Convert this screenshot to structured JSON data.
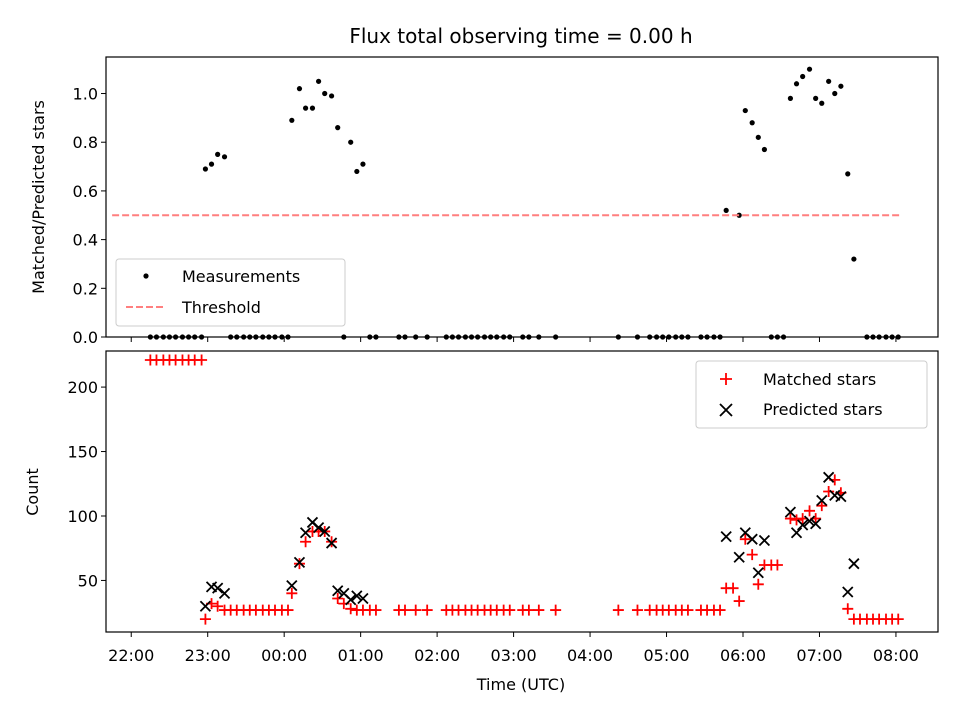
{
  "chart_data": {
    "title": "Flux total observing time = 0.00 h",
    "xlabel": "Time (UTC)",
    "x_unit": "hours since 22:00 UTC",
    "xlim": [
      -0.33,
      10.55
    ],
    "x_ticks": [
      {
        "value": 0,
        "label": "22:00"
      },
      {
        "value": 1,
        "label": "23:00"
      },
      {
        "value": 2,
        "label": "00:00"
      },
      {
        "value": 3,
        "label": "01:00"
      },
      {
        "value": 4,
        "label": "02:00"
      },
      {
        "value": 5,
        "label": "03:00"
      },
      {
        "value": 6,
        "label": "04:00"
      },
      {
        "value": 7,
        "label": "05:00"
      },
      {
        "value": 8,
        "label": "06:00"
      },
      {
        "value": 9,
        "label": "07:00"
      },
      {
        "value": 10,
        "label": "08:00"
      }
    ],
    "panels": [
      {
        "type": "scatter",
        "ylabel": "Matched/Predicted stars",
        "ylim": [
          0,
          1.15
        ],
        "y_ticks": [
          0.0,
          0.2,
          0.4,
          0.6,
          0.8,
          1.0
        ],
        "y_tick_labels": [
          "0.0",
          "0.2",
          "0.4",
          "0.6",
          "0.8",
          "1.0"
        ],
        "legend": {
          "position": "lower-left",
          "entries": [
            {
              "label": "Measurements",
              "marker": "dot",
              "color": "#000000"
            },
            {
              "label": "Threshold",
              "marker": "dashed-line",
              "color": "#ff7f7f"
            }
          ]
        },
        "series": [
          {
            "name": "Measurements",
            "marker": "dot",
            "color": "#000000",
            "points": [
              [
                0.25,
                0
              ],
              [
                0.33,
                0
              ],
              [
                0.42,
                0
              ],
              [
                0.5,
                0
              ],
              [
                0.58,
                0
              ],
              [
                0.67,
                0
              ],
              [
                0.75,
                0
              ],
              [
                0.83,
                0
              ],
              [
                0.92,
                0
              ],
              [
                0.97,
                0.69
              ],
              [
                1.05,
                0.71
              ],
              [
                1.13,
                0.75
              ],
              [
                1.22,
                0.74
              ],
              [
                1.3,
                0
              ],
              [
                1.38,
                0
              ],
              [
                1.47,
                0
              ],
              [
                1.55,
                0
              ],
              [
                1.63,
                0
              ],
              [
                1.72,
                0
              ],
              [
                1.8,
                0
              ],
              [
                1.88,
                0
              ],
              [
                1.97,
                0
              ],
              [
                2.05,
                0
              ],
              [
                2.1,
                0.89
              ],
              [
                2.2,
                1.02
              ],
              [
                2.28,
                0.94
              ],
              [
                2.37,
                0.94
              ],
              [
                2.45,
                1.05
              ],
              [
                2.53,
                1.0
              ],
              [
                2.62,
                0.99
              ],
              [
                2.7,
                0.86
              ],
              [
                2.78,
                0
              ],
              [
                2.87,
                0.8
              ],
              [
                2.95,
                0.68
              ],
              [
                3.03,
                0.71
              ],
              [
                3.12,
                0
              ],
              [
                3.2,
                0
              ],
              [
                3.5,
                0
              ],
              [
                3.58,
                0
              ],
              [
                3.72,
                0
              ],
              [
                3.87,
                0
              ],
              [
                4.12,
                0
              ],
              [
                4.2,
                0
              ],
              [
                4.28,
                0
              ],
              [
                4.37,
                0
              ],
              [
                4.45,
                0
              ],
              [
                4.53,
                0
              ],
              [
                4.62,
                0
              ],
              [
                4.7,
                0
              ],
              [
                4.78,
                0
              ],
              [
                4.87,
                0
              ],
              [
                4.95,
                0
              ],
              [
                5.12,
                0
              ],
              [
                5.2,
                0
              ],
              [
                5.33,
                0
              ],
              [
                5.55,
                0
              ],
              [
                6.37,
                0
              ],
              [
                6.62,
                0
              ],
              [
                6.78,
                0
              ],
              [
                6.87,
                0
              ],
              [
                6.95,
                0
              ],
              [
                7.03,
                0
              ],
              [
                7.12,
                0
              ],
              [
                7.2,
                0
              ],
              [
                7.28,
                0
              ],
              [
                7.45,
                0
              ],
              [
                7.53,
                0
              ],
              [
                7.62,
                0
              ],
              [
                7.7,
                0
              ],
              [
                7.78,
                0.52
              ],
              [
                7.95,
                0.5
              ],
              [
                8.03,
                0.93
              ],
              [
                8.12,
                0.88
              ],
              [
                8.2,
                0.82
              ],
              [
                8.28,
                0.77
              ],
              [
                8.37,
                0
              ],
              [
                8.45,
                0
              ],
              [
                8.53,
                0
              ],
              [
                8.62,
                0.98
              ],
              [
                8.7,
                1.04
              ],
              [
                8.78,
                1.07
              ],
              [
                8.87,
                1.1
              ],
              [
                8.95,
                0.98
              ],
              [
                9.03,
                0.96
              ],
              [
                9.12,
                1.05
              ],
              [
                9.2,
                1.0
              ],
              [
                9.28,
                1.03
              ],
              [
                9.37,
                0.67
              ],
              [
                9.45,
                0.32
              ],
              [
                9.62,
                0
              ],
              [
                9.7,
                0
              ],
              [
                9.78,
                0
              ],
              [
                9.87,
                0
              ],
              [
                9.95,
                0
              ],
              [
                10.03,
                0
              ]
            ]
          },
          {
            "name": "Threshold",
            "type": "line",
            "style": "dashed",
            "color": "#ff7f7f",
            "points": [
              [
                -0.25,
                0.5
              ],
              [
                10.05,
                0.5
              ]
            ]
          }
        ]
      },
      {
        "type": "scatter",
        "ylabel": "Count",
        "ylim": [
          10,
          228
        ],
        "y_ticks": [
          50,
          100,
          150,
          200
        ],
        "y_tick_labels": [
          "50",
          "100",
          "150",
          "200"
        ],
        "legend": {
          "position": "upper-right",
          "entries": [
            {
              "label": "Matched stars",
              "marker": "plus",
              "color": "#ff0000"
            },
            {
              "label": "Predicted stars",
              "marker": "x",
              "color": "#000000"
            }
          ]
        },
        "series": [
          {
            "name": "Matched stars",
            "marker": "plus",
            "color": "#ff0000",
            "points": [
              [
                0.25,
                221
              ],
              [
                0.33,
                221
              ],
              [
                0.42,
                221
              ],
              [
                0.5,
                221
              ],
              [
                0.58,
                221
              ],
              [
                0.67,
                221
              ],
              [
                0.75,
                221
              ],
              [
                0.83,
                221
              ],
              [
                0.92,
                221
              ],
              [
                0.97,
                20
              ],
              [
                1.05,
                32
              ],
              [
                1.13,
                30
              ],
              [
                1.22,
                27
              ],
              [
                1.3,
                27
              ],
              [
                1.38,
                27
              ],
              [
                1.47,
                27
              ],
              [
                1.55,
                27
              ],
              [
                1.63,
                27
              ],
              [
                1.72,
                27
              ],
              [
                1.8,
                27
              ],
              [
                1.88,
                27
              ],
              [
                1.97,
                27
              ],
              [
                2.05,
                27
              ],
              [
                2.1,
                40
              ],
              [
                2.2,
                63
              ],
              [
                2.28,
                80
              ],
              [
                2.37,
                88
              ],
              [
                2.45,
                88
              ],
              [
                2.53,
                88
              ],
              [
                2.62,
                80
              ],
              [
                2.7,
                36
              ],
              [
                2.78,
                32
              ],
              [
                2.87,
                28
              ],
              [
                2.95,
                27
              ],
              [
                3.03,
                27
              ],
              [
                3.12,
                27
              ],
              [
                3.2,
                27
              ],
              [
                3.5,
                27
              ],
              [
                3.58,
                27
              ],
              [
                3.72,
                27
              ],
              [
                3.87,
                27
              ],
              [
                4.12,
                27
              ],
              [
                4.2,
                27
              ],
              [
                4.28,
                27
              ],
              [
                4.37,
                27
              ],
              [
                4.45,
                27
              ],
              [
                4.53,
                27
              ],
              [
                4.62,
                27
              ],
              [
                4.7,
                27
              ],
              [
                4.78,
                27
              ],
              [
                4.87,
                27
              ],
              [
                4.95,
                27
              ],
              [
                5.12,
                27
              ],
              [
                5.2,
                27
              ],
              [
                5.33,
                27
              ],
              [
                5.55,
                27
              ],
              [
                6.37,
                27
              ],
              [
                6.62,
                27
              ],
              [
                6.78,
                27
              ],
              [
                6.87,
                27
              ],
              [
                6.95,
                27
              ],
              [
                7.03,
                27
              ],
              [
                7.12,
                27
              ],
              [
                7.2,
                27
              ],
              [
                7.28,
                27
              ],
              [
                7.45,
                27
              ],
              [
                7.53,
                27
              ],
              [
                7.62,
                27
              ],
              [
                7.7,
                27
              ],
              [
                7.78,
                44
              ],
              [
                7.87,
                44
              ],
              [
                7.95,
                34
              ],
              [
                8.03,
                82
              ],
              [
                8.12,
                70
              ],
              [
                8.2,
                47
              ],
              [
                8.28,
                62
              ],
              [
                8.37,
                62
              ],
              [
                8.45,
                62
              ],
              [
                8.62,
                98
              ],
              [
                8.7,
                97
              ],
              [
                8.78,
                98
              ],
              [
                8.87,
                104
              ],
              [
                8.95,
                98
              ],
              [
                9.03,
                108
              ],
              [
                9.12,
                119
              ],
              [
                9.2,
                128
              ],
              [
                9.28,
                118
              ],
              [
                9.37,
                28
              ],
              [
                9.45,
                20
              ],
              [
                9.53,
                20
              ],
              [
                9.62,
                20
              ],
              [
                9.7,
                20
              ],
              [
                9.78,
                20
              ],
              [
                9.87,
                20
              ],
              [
                9.95,
                20
              ],
              [
                10.03,
                20
              ]
            ]
          },
          {
            "name": "Predicted stars",
            "marker": "x",
            "color": "#000000",
            "points": [
              [
                0.97,
                30
              ],
              [
                1.05,
                45
              ],
              [
                1.13,
                44
              ],
              [
                1.22,
                40
              ],
              [
                2.1,
                46
              ],
              [
                2.2,
                64
              ],
              [
                2.28,
                87
              ],
              [
                2.37,
                95
              ],
              [
                2.45,
                91
              ],
              [
                2.53,
                88
              ],
              [
                2.62,
                79
              ],
              [
                2.7,
                42
              ],
              [
                2.78,
                40
              ],
              [
                2.87,
                35
              ],
              [
                2.95,
                38
              ],
              [
                3.03,
                36
              ],
              [
                7.78,
                84
              ],
              [
                7.95,
                68
              ],
              [
                8.03,
                87
              ],
              [
                8.12,
                82
              ],
              [
                8.2,
                56
              ],
              [
                8.28,
                81
              ],
              [
                8.62,
                103
              ],
              [
                8.7,
                87
              ],
              [
                8.78,
                93
              ],
              [
                8.87,
                96
              ],
              [
                8.95,
                94
              ],
              [
                9.03,
                112
              ],
              [
                9.12,
                130
              ],
              [
                9.2,
                116
              ],
              [
                9.28,
                115
              ],
              [
                9.37,
                41
              ],
              [
                9.45,
                63
              ]
            ]
          }
        ]
      }
    ]
  }
}
